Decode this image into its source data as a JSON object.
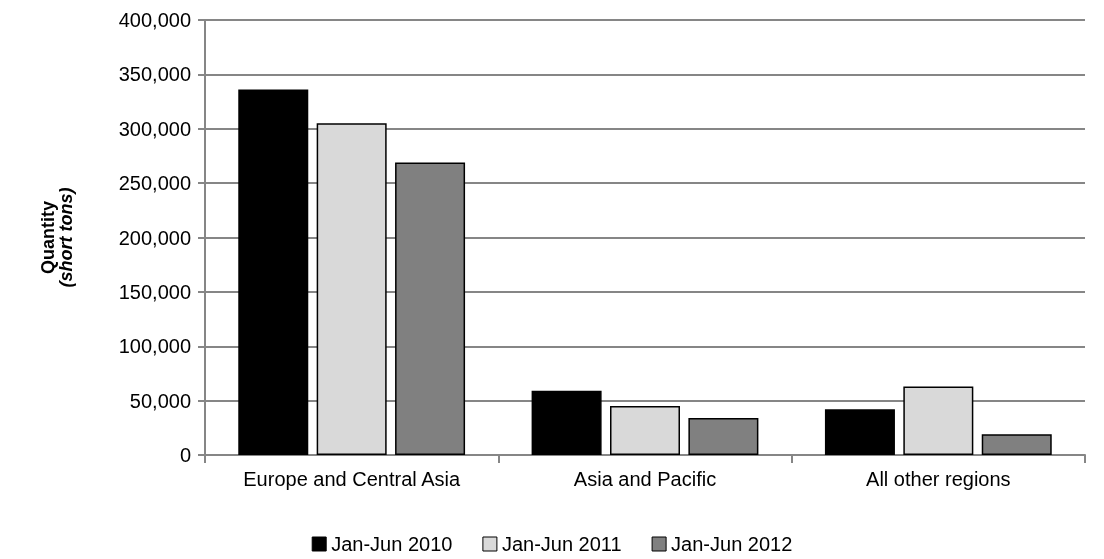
{
  "chart_data": {
    "type": "bar",
    "ylabel": "Quantity (short tons)",
    "categories": [
      "Europe and Central Asia",
      "Asia and Pacific",
      "All other regions"
    ],
    "series": [
      {
        "name": "Jan-Jun 2010",
        "color": "#000000",
        "values": [
          336000,
          59000,
          42000
        ]
      },
      {
        "name": "Jan-Jun 2011",
        "color": "#d9d9d9",
        "values": [
          305000,
          45000,
          63000
        ]
      },
      {
        "name": "Jan-Jun 2012",
        "color": "#808080",
        "values": [
          269000,
          34000,
          19000
        ]
      }
    ],
    "ylim": [
      0,
      400000
    ],
    "yticks": [
      0,
      {
        "value": 50000,
        "label": "50,000"
      },
      {
        "value": 100000,
        "label": "100,000"
      },
      {
        "value": 150000,
        "label": "150,000"
      },
      {
        "value": 200000,
        "label": "200,000"
      },
      {
        "value": 250000,
        "label": "250,000"
      },
      {
        "value": 300000,
        "label": "300,000"
      },
      {
        "value": 350000,
        "label": "350,000"
      },
      {
        "value": 400000,
        "label": "400,000"
      }
    ],
    "grid": "y",
    "legend": "bottom"
  }
}
